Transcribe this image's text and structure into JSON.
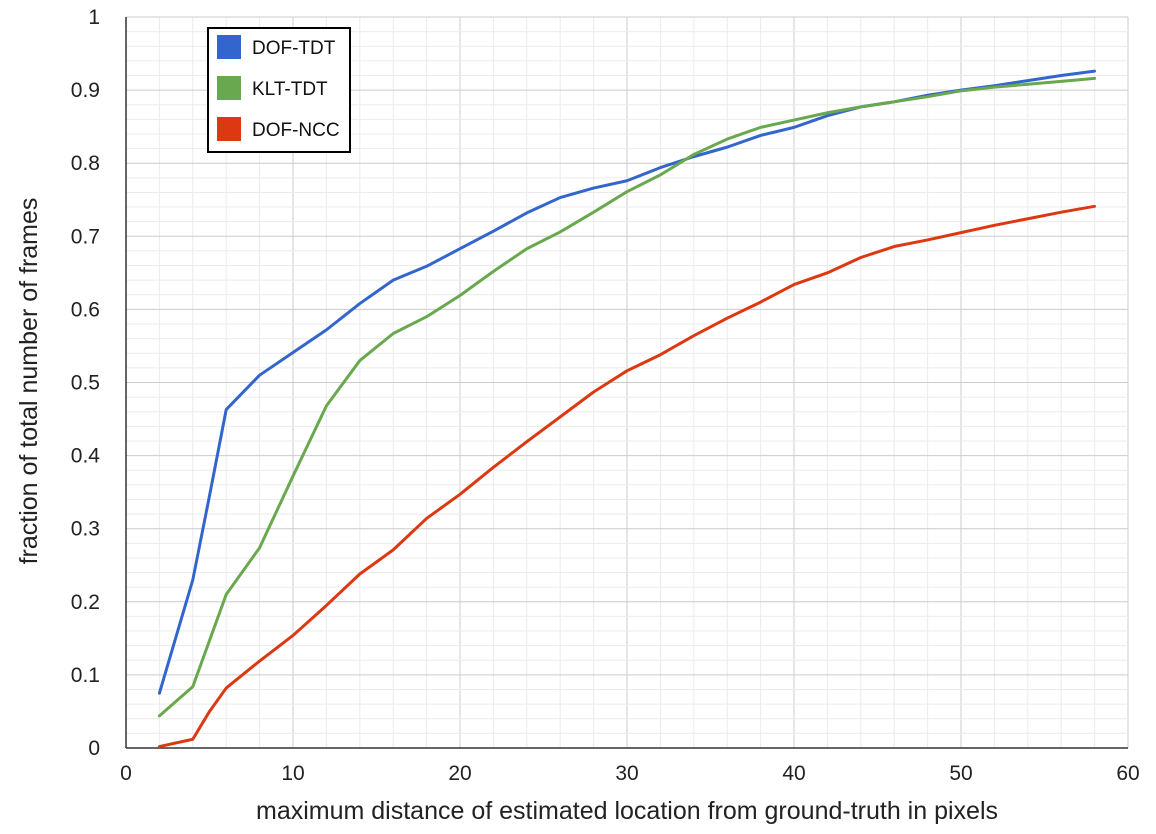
{
  "chart_data": {
    "type": "line",
    "title": "",
    "xlabel": "maximum distance of estimated location from ground-truth in pixels",
    "ylabel": "fraction of total number of frames",
    "xlim": [
      0,
      60
    ],
    "ylim": [
      0,
      1
    ],
    "x_ticks": [
      "0",
      "10",
      "20",
      "30",
      "40",
      "50",
      "60"
    ],
    "y_ticks": [
      "0",
      "0.1",
      "0.2",
      "0.3",
      "0.4",
      "0.5",
      "0.6",
      "0.7",
      "0.8",
      "0.9",
      "1"
    ],
    "grid": true,
    "legend_position": "top-left",
    "series": [
      {
        "name": "DOF-TDT",
        "color": "#3366cc",
        "x": [
          2,
          4,
          5,
          6,
          8,
          10,
          12,
          14,
          16,
          18,
          20,
          22,
          24,
          26,
          28,
          30,
          32,
          34,
          36,
          38,
          40,
          42,
          44,
          46,
          48,
          50,
          52,
          54,
          56,
          58
        ],
        "y": [
          0.075,
          0.23,
          0.345,
          0.463,
          0.51,
          0.541,
          0.572,
          0.608,
          0.64,
          0.659,
          0.683,
          0.707,
          0.732,
          0.753,
          0.766,
          0.776,
          0.794,
          0.809,
          0.822,
          0.838,
          0.849,
          0.865,
          0.877,
          0.884,
          0.893,
          0.9,
          0.906,
          0.913,
          0.92,
          0.926
        ]
      },
      {
        "name": "KLT-TDT",
        "color": "#6aa84f",
        "x": [
          2,
          4,
          6,
          8,
          10,
          12,
          14,
          16,
          18,
          20,
          22,
          24,
          26,
          28,
          30,
          32,
          34,
          36,
          38,
          40,
          42,
          44,
          46,
          48,
          50,
          52,
          54,
          56,
          58
        ],
        "y": [
          0.044,
          0.084,
          0.21,
          0.274,
          0.372,
          0.468,
          0.53,
          0.567,
          0.59,
          0.619,
          0.652,
          0.683,
          0.706,
          0.733,
          0.761,
          0.784,
          0.812,
          0.833,
          0.849,
          0.859,
          0.869,
          0.877,
          0.884,
          0.891,
          0.899,
          0.904,
          0.908,
          0.912,
          0.916
        ]
      },
      {
        "name": "DOF-NCC",
        "color": "#dc3912",
        "x": [
          2,
          4,
          5,
          6,
          8,
          10,
          12,
          14,
          16,
          18,
          20,
          22,
          24,
          26,
          28,
          30,
          32,
          34,
          36,
          38,
          40,
          42,
          44,
          46,
          48,
          50,
          52,
          54,
          56,
          58
        ],
        "y": [
          0.002,
          0.012,
          0.05,
          0.082,
          0.119,
          0.154,
          0.195,
          0.238,
          0.271,
          0.314,
          0.347,
          0.384,
          0.419,
          0.453,
          0.487,
          0.516,
          0.538,
          0.564,
          0.588,
          0.61,
          0.634,
          0.65,
          0.671,
          0.686,
          0.695,
          0.705,
          0.715,
          0.724,
          0.733,
          0.741
        ]
      }
    ]
  }
}
